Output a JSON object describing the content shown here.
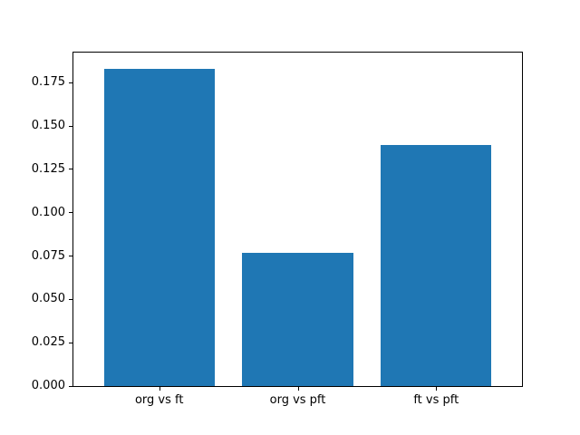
{
  "chart_data": {
    "type": "bar",
    "categories": [
      "org vs ft",
      "org vs pft",
      "ft vs pft"
    ],
    "values": [
      0.183,
      0.077,
      0.139
    ],
    "title": "",
    "xlabel": "",
    "ylabel": "",
    "ylim": [
      0,
      0.1924
    ],
    "yticks": [
      0.0,
      0.025,
      0.05,
      0.075,
      0.1,
      0.125,
      0.15,
      0.175
    ],
    "ytick_decimals": 3,
    "bar_color": "#1f77b4",
    "axis_color": "#000000",
    "background_color": "#ffffff",
    "grid": false,
    "legend": null
  }
}
